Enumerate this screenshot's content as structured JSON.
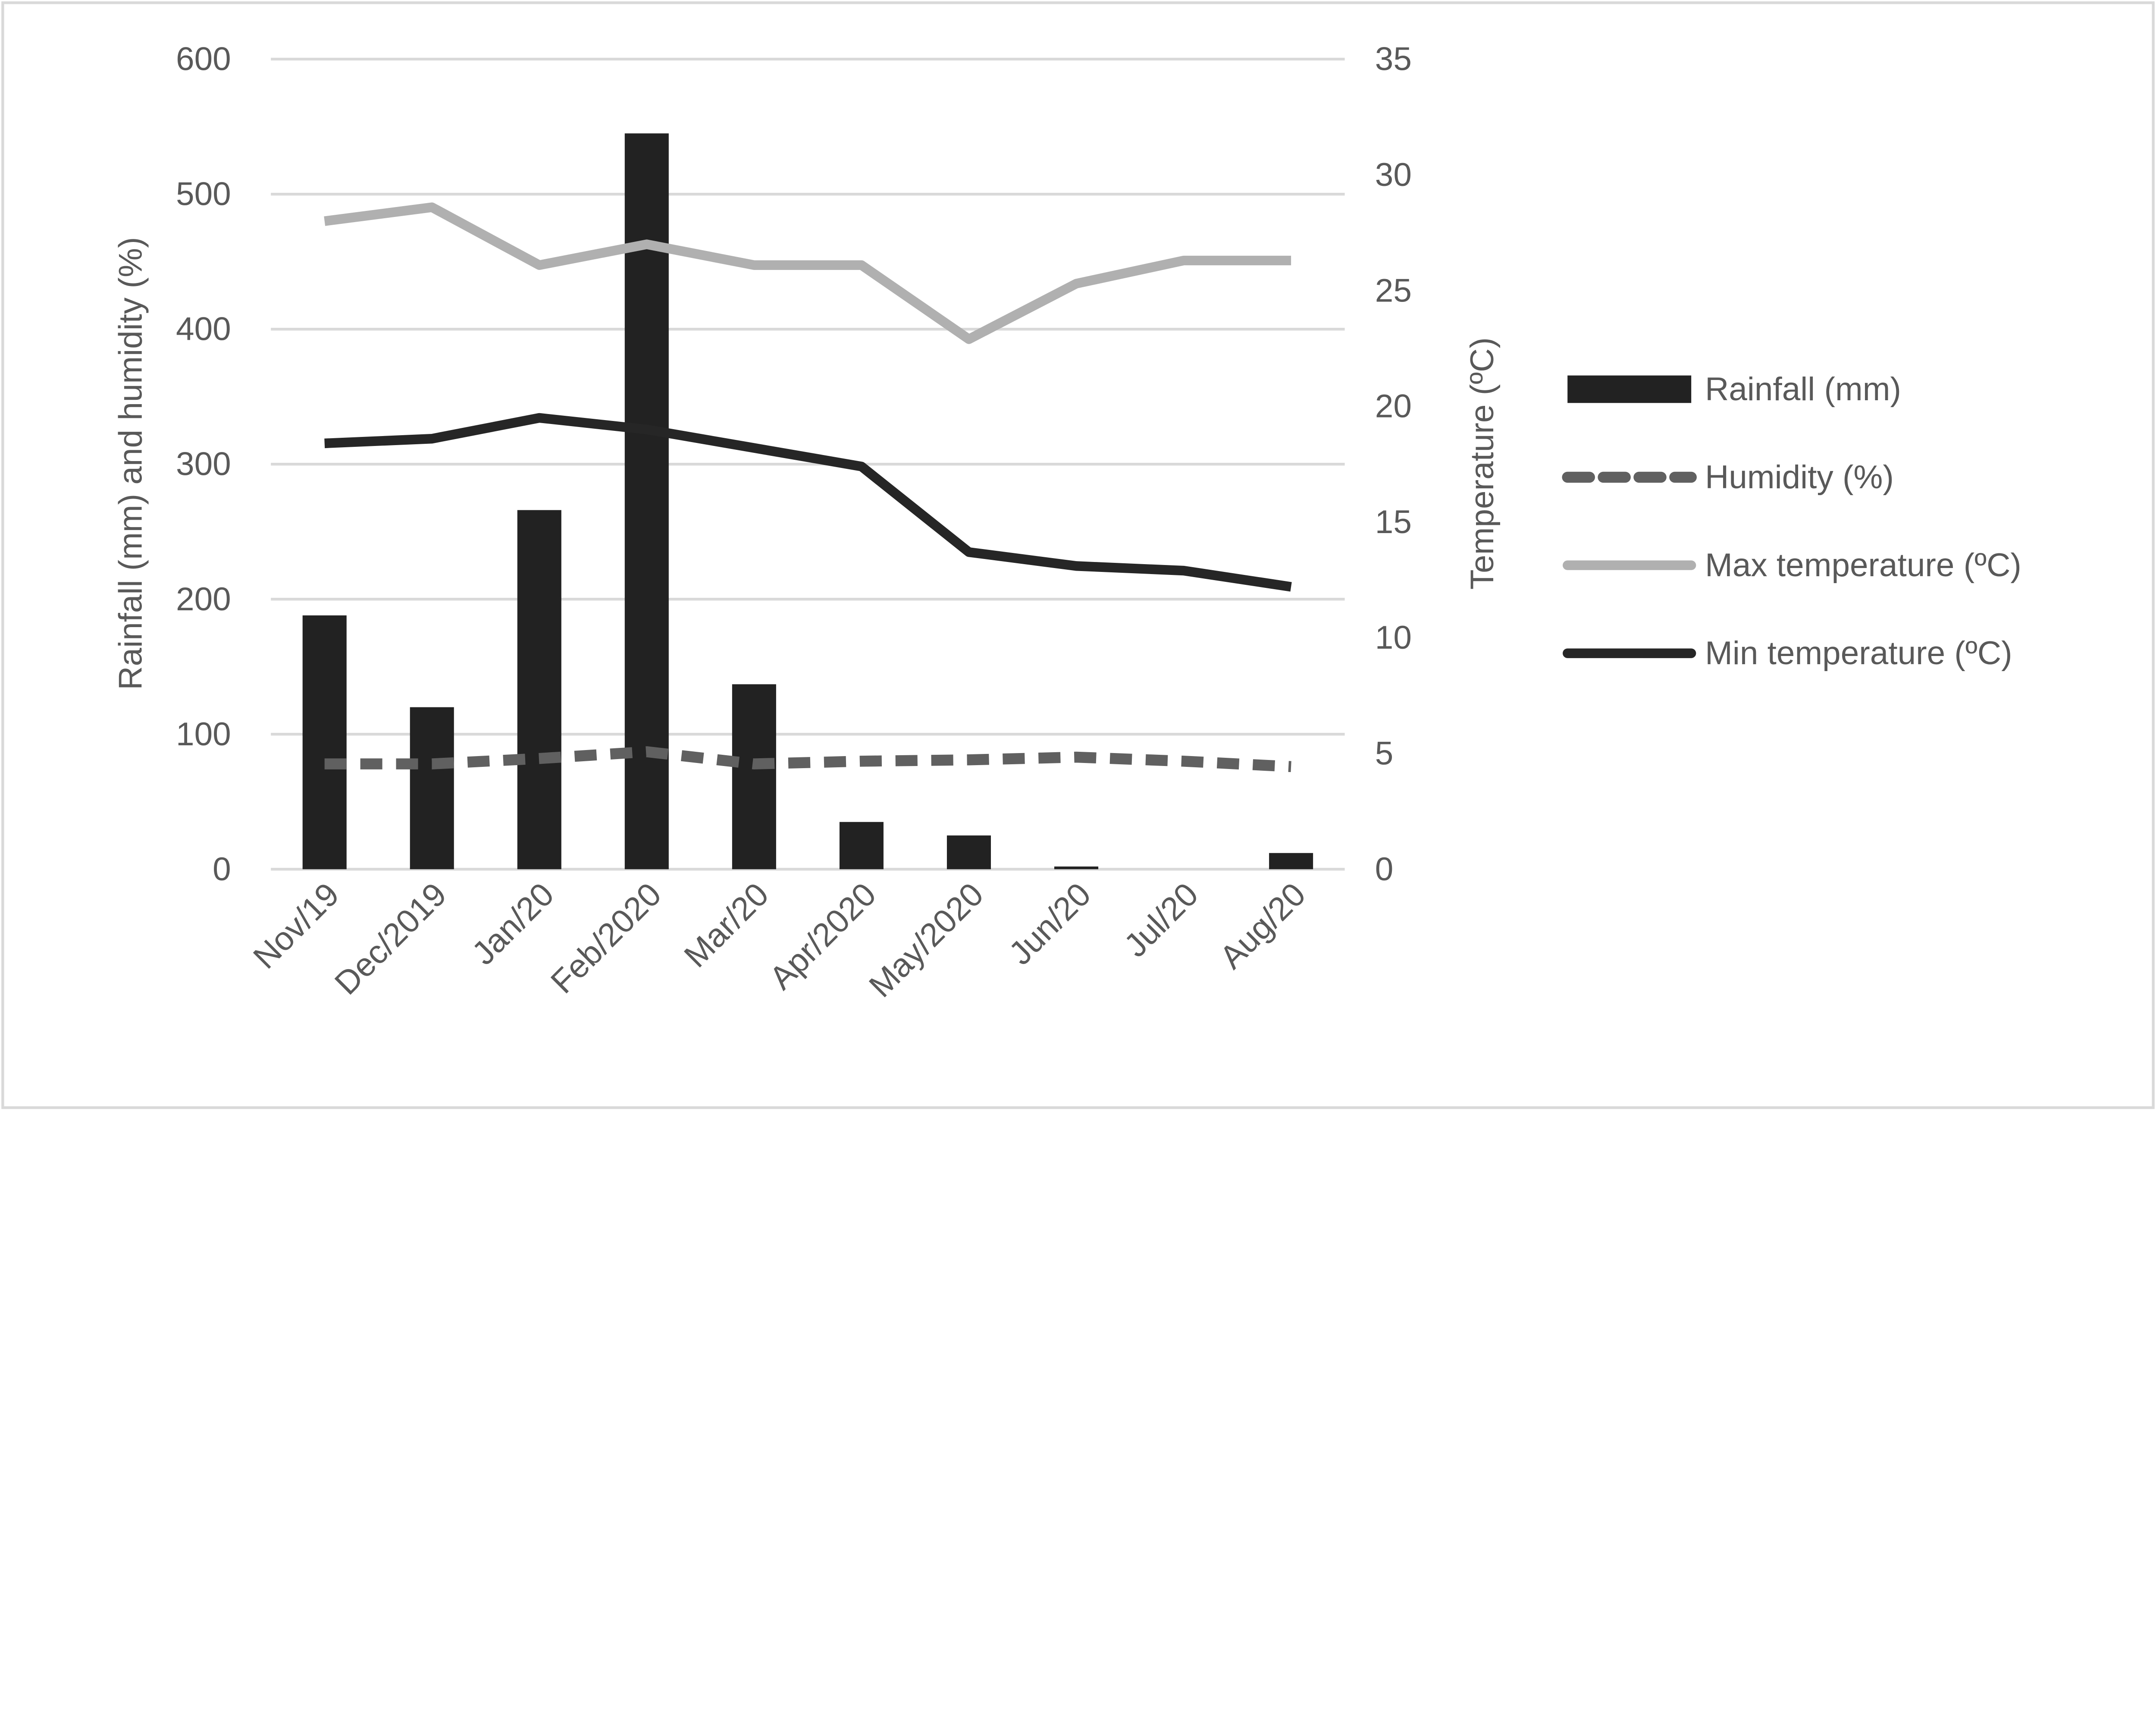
{
  "chart_data": {
    "type": "bar+line",
    "categories": [
      "Nov/19",
      "Dec/2019",
      "Jan/20",
      "Feb/2020",
      "Mar/20",
      "Apr/2020",
      "May/2020",
      "Jun/20",
      "Jul/20",
      "Aug/20"
    ],
    "y_left": {
      "label": "Rainfall (mm) and humidity (%)",
      "range": [
        0,
        600
      ],
      "ticks": [
        0,
        100,
        200,
        300,
        400,
        500,
        600
      ]
    },
    "y_right": {
      "label": "Temperature (ºC)",
      "range": [
        0,
        35
      ],
      "ticks": [
        0,
        5,
        10,
        15,
        20,
        25,
        30,
        35
      ]
    },
    "grid": true,
    "legend_position": "right",
    "series": [
      {
        "name": "Rainfall (mm)",
        "type": "bar",
        "axis": "left",
        "color": "#222222",
        "values": [
          188,
          120,
          266,
          545,
          137,
          35,
          25,
          2,
          0,
          12
        ]
      },
      {
        "name": "Humidity (%)",
        "type": "line",
        "style": "dashed",
        "axis": "left",
        "color": "#606060",
        "values": [
          78,
          78,
          82,
          87,
          78,
          80,
          81,
          83,
          80,
          76
        ]
      },
      {
        "name": "Max temperature (ºC)",
        "type": "line",
        "axis": "right",
        "color": "#b0b0b0",
        "values": [
          28.0,
          28.6,
          26.1,
          27.0,
          26.1,
          26.1,
          22.9,
          25.3,
          26.3,
          26.3
        ]
      },
      {
        "name": "Min temperature (ºC)",
        "type": "line",
        "axis": "right",
        "color": "#262626",
        "values": [
          18.4,
          18.6,
          19.5,
          19.0,
          18.2,
          17.4,
          13.7,
          13.1,
          12.9,
          12.2
        ]
      }
    ]
  }
}
